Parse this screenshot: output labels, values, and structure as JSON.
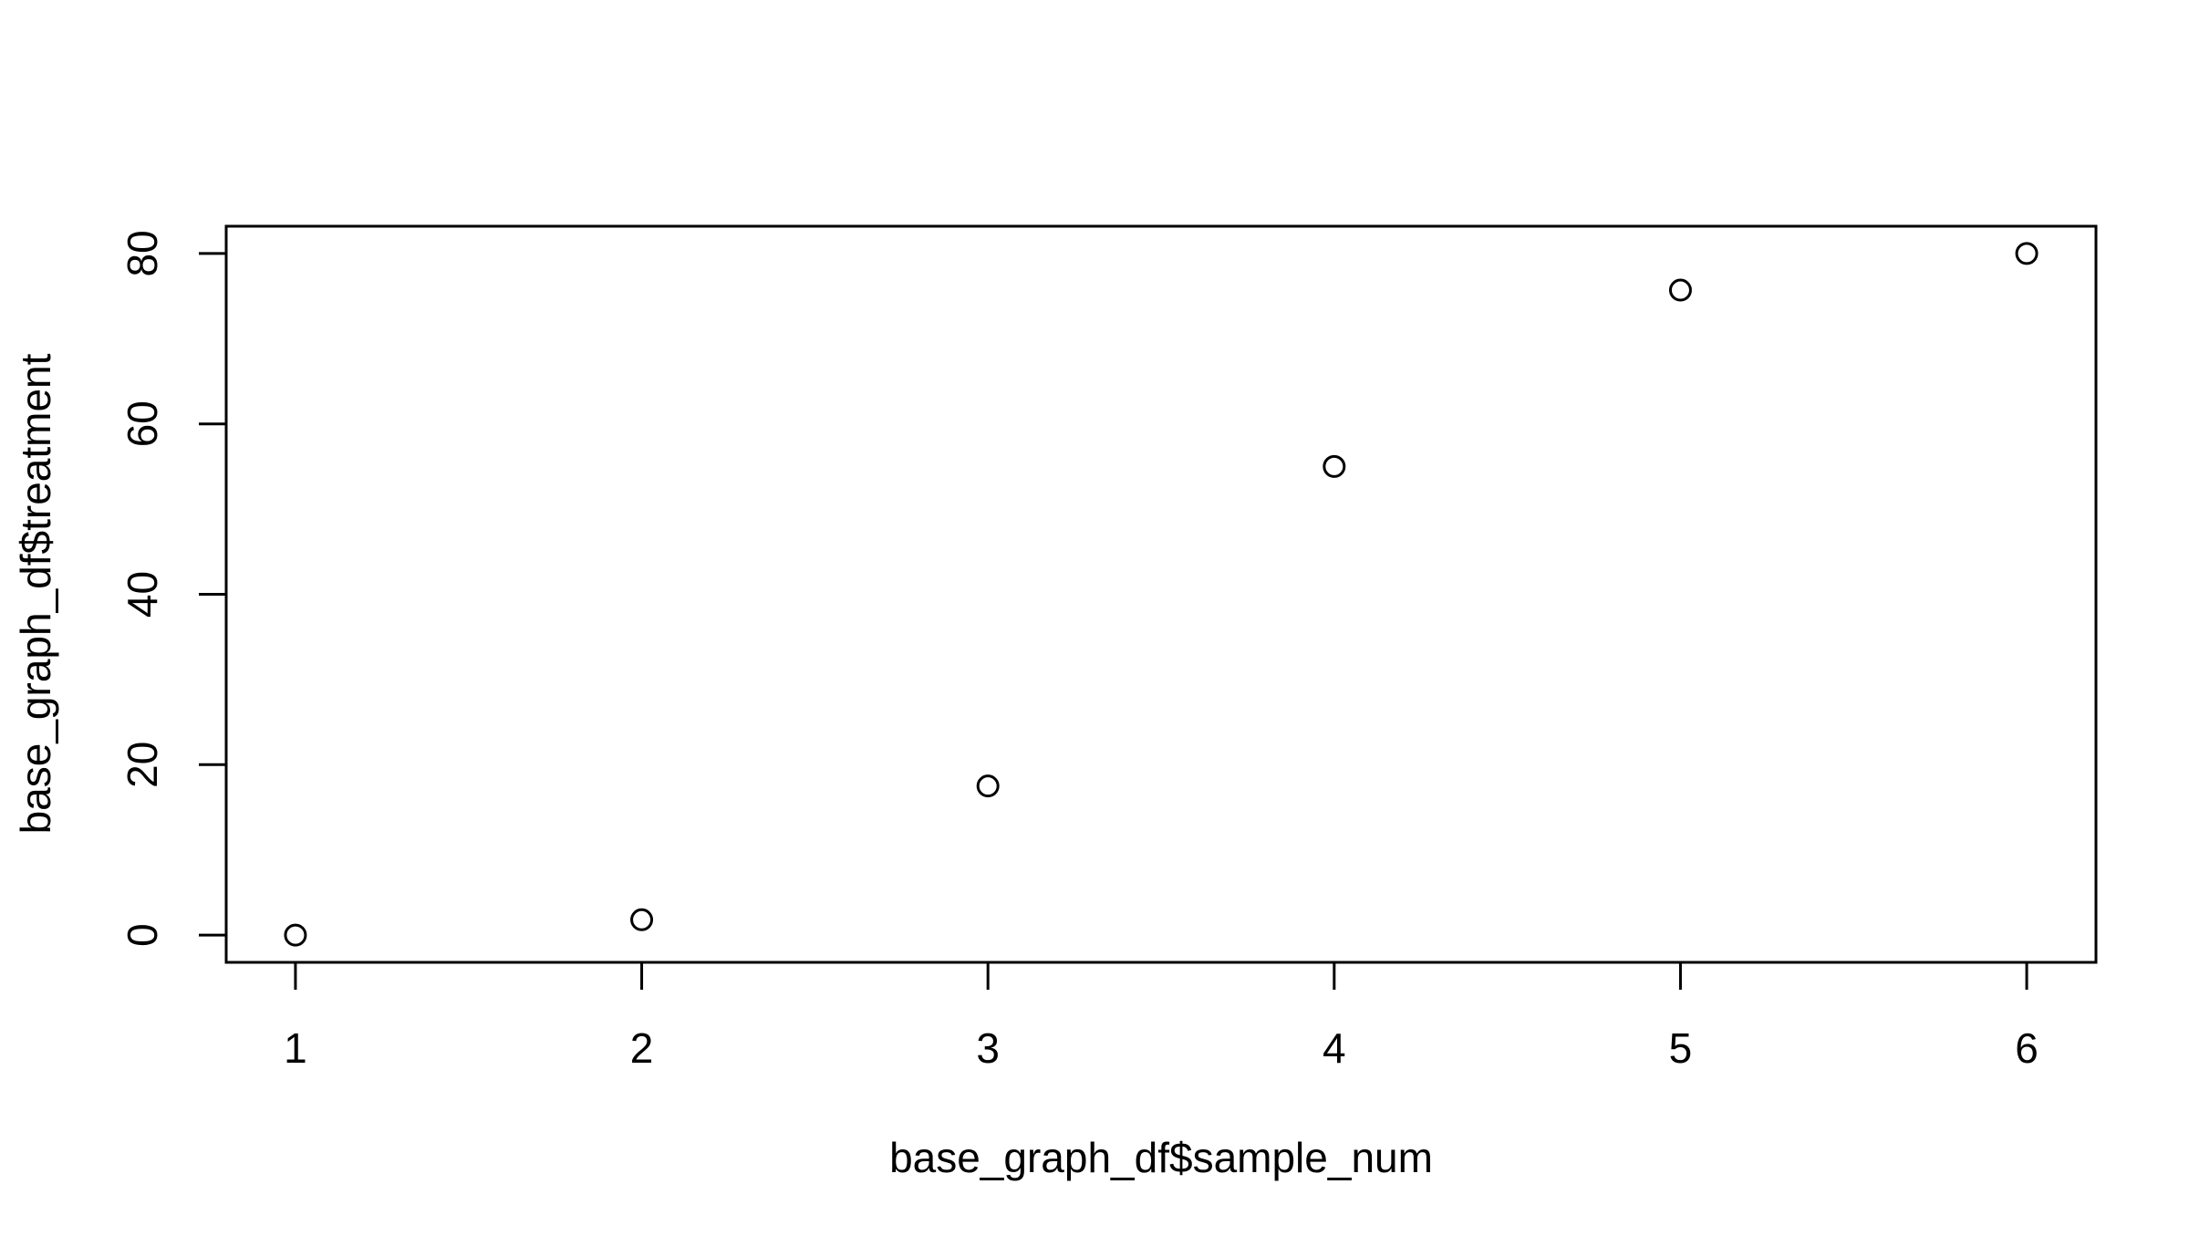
{
  "chart_data": {
    "type": "scatter",
    "title": "",
    "xlabel": "base_graph_df$sample_num",
    "ylabel": "base_graph_df$treatment",
    "x": [
      1,
      2,
      3,
      4,
      5,
      6
    ],
    "y": [
      0,
      1.8,
      17.5,
      55,
      75.7,
      80
    ],
    "xlim": [
      0.8,
      6.2
    ],
    "ylim": [
      -3.2,
      83.2
    ],
    "x_ticks": [
      1,
      2,
      3,
      4,
      5,
      6
    ],
    "y_ticks": [
      0,
      20,
      40,
      60,
      80
    ],
    "marker": "open-circle",
    "grid": false,
    "legend": "none",
    "colors": {
      "points": "#000000",
      "axes": "#000000",
      "background": "#ffffff"
    }
  }
}
